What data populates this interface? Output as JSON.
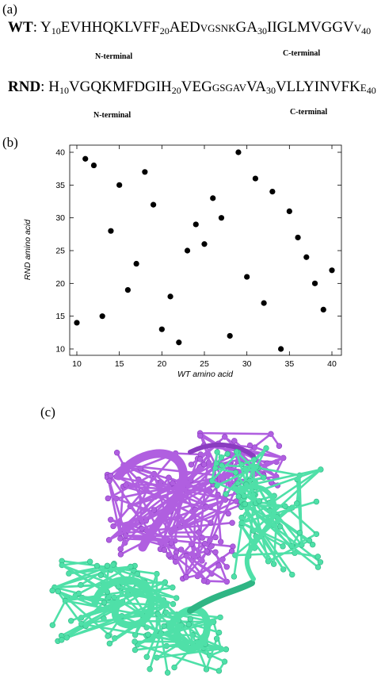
{
  "panel_labels": {
    "a": "(a)",
    "b": "(b)",
    "c": "(c)"
  },
  "sequences": {
    "wt": {
      "name": "WT",
      "segments": [
        {
          "t": "Y",
          "k": "n"
        },
        {
          "t": "10",
          "k": "sub"
        },
        {
          "t": "EVHHQKLVFF",
          "k": "n"
        },
        {
          "t": "20",
          "k": "sub"
        },
        {
          "t": "AED",
          "k": "n"
        },
        {
          "t": "VGSNK",
          "k": "sm"
        },
        {
          "t": "GA",
          "k": "n"
        },
        {
          "t": "30",
          "k": "sub"
        },
        {
          "t": "IIGLMVGGV",
          "k": "n"
        },
        {
          "t": "V",
          "k": "sm"
        },
        {
          "t": "40",
          "k": "sub"
        }
      ]
    },
    "rnd": {
      "name": "RND",
      "segments": [
        {
          "t": "H",
          "k": "n"
        },
        {
          "t": "10",
          "k": "sub"
        },
        {
          "t": "VGQKMFDGIH",
          "k": "n"
        },
        {
          "t": "20",
          "k": "sub"
        },
        {
          "t": "VEG",
          "k": "n"
        },
        {
          "t": "GSGAV",
          "k": "sm"
        },
        {
          "t": "VA",
          "k": "n"
        },
        {
          "t": "30",
          "k": "sub"
        },
        {
          "t": "VLLYINVFK",
          "k": "n"
        },
        {
          "t": "E",
          "k": "sm"
        },
        {
          "t": "40",
          "k": "sub"
        }
      ]
    },
    "n_terminal": "N-terminal",
    "c_terminal": "C-terminal"
  },
  "chart_data": {
    "type": "scatter",
    "xlabel": "WT amino acid",
    "ylabel": "RND amino acid",
    "xlim": [
      10,
      40
    ],
    "ylim": [
      10,
      40
    ],
    "xticks": [
      10,
      15,
      20,
      25,
      30,
      35,
      40
    ],
    "yticks": [
      10,
      15,
      20,
      25,
      30,
      35,
      40
    ],
    "grid": false,
    "points": [
      [
        10,
        14
      ],
      [
        11,
        39
      ],
      [
        12,
        38
      ],
      [
        13,
        15
      ],
      [
        14,
        28
      ],
      [
        15,
        35
      ],
      [
        16,
        19
      ],
      [
        17,
        23
      ],
      [
        18,
        37
      ],
      [
        19,
        32
      ],
      [
        20,
        13
      ],
      [
        21,
        18
      ],
      [
        22,
        11
      ],
      [
        23,
        25
      ],
      [
        24,
        29
      ],
      [
        25,
        26
      ],
      [
        26,
        33
      ],
      [
        27,
        30
      ],
      [
        28,
        12
      ],
      [
        29,
        40
      ],
      [
        30,
        21
      ],
      [
        31,
        36
      ],
      [
        32,
        17
      ],
      [
        33,
        34
      ],
      [
        34,
        10
      ],
      [
        35,
        31
      ],
      [
        36,
        27
      ],
      [
        37,
        24
      ],
      [
        38,
        20
      ],
      [
        39,
        16
      ],
      [
        40,
        22
      ]
    ]
  },
  "structure": {
    "colors": {
      "purple": "#b05fe0",
      "purple_dark": "#8a3cc0",
      "green": "#4fe0a8",
      "green_dark": "#2fb584"
    }
  }
}
